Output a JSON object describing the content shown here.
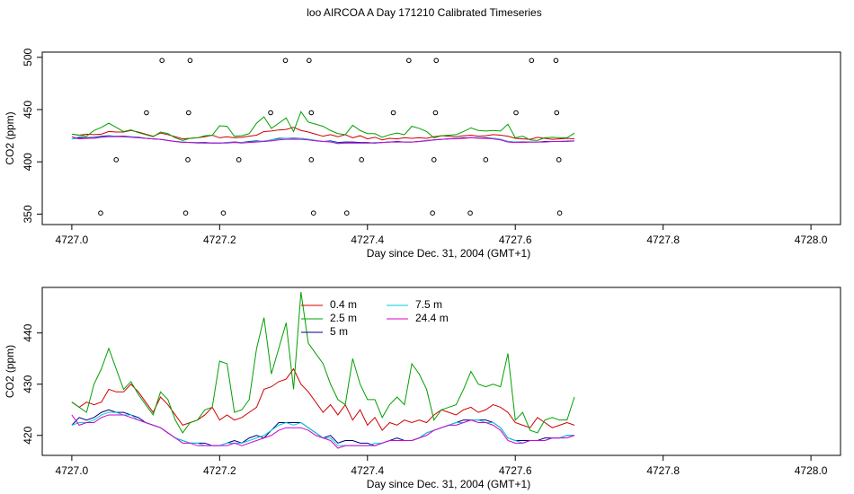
{
  "title": "loo AIRCOA A  Day 171210  Calibrated Timeseries",
  "chart_data": [
    {
      "type": "line",
      "xlabel": "Day since Dec. 31, 2004 (GMT+1)",
      "ylabel": "CO2 (ppm)",
      "xlim": [
        4726.96,
        4728.04
      ],
      "ylim": [
        340,
        505
      ],
      "xticks": [
        {
          "value": 4727,
          "label": "4727.0"
        },
        4727.2,
        4727.4,
        4727.6,
        4727.8,
        {
          "value": 4728,
          "label": "4728.0"
        }
      ],
      "yticks": [
        350,
        400,
        450,
        500
      ],
      "x": [
        4727,
        4727.01,
        4727.02,
        4727.03,
        4727.04,
        4727.05,
        4727.06,
        4727.07,
        4727.08,
        4727.09,
        4727.1,
        4727.11,
        4727.12,
        4727.13,
        4727.14,
        4727.15,
        4727.16,
        4727.17,
        4727.18,
        4727.19,
        4727.2,
        4727.21,
        4727.22,
        4727.23,
        4727.24,
        4727.25,
        4727.26,
        4727.27,
        4727.28,
        4727.29,
        4727.3,
        4727.31,
        4727.32,
        4727.33,
        4727.34,
        4727.35,
        4727.36,
        4727.37,
        4727.38,
        4727.39,
        4727.4,
        4727.41,
        4727.42,
        4727.43,
        4727.44,
        4727.45,
        4727.46,
        4727.47,
        4727.48,
        4727.49,
        4727.5,
        4727.51,
        4727.52,
        4727.53,
        4727.54,
        4727.55,
        4727.56,
        4727.57,
        4727.58,
        4727.59,
        4727.6,
        4727.61,
        4727.62,
        4727.63,
        4727.64,
        4727.65,
        4727.66,
        4727.67,
        4727.68
      ],
      "series": [
        {
          "color": "#d00000",
          "values": [
            426.5,
            425.5,
            426.5,
            426,
            426.5,
            429,
            428.5,
            428.5,
            430,
            428.5,
            426.5,
            424.5,
            427.5,
            426,
            424,
            422,
            422.5,
            423,
            424,
            425.5,
            423,
            424,
            423,
            423.5,
            424.5,
            425.5,
            429,
            429.5,
            430.5,
            431,
            433,
            430,
            428.5,
            426.5,
            424.5,
            426,
            424,
            426,
            423,
            425,
            422,
            423.5,
            421,
            422.5,
            422,
            423,
            422.5,
            423,
            422.5,
            424,
            425,
            424.5,
            424,
            425,
            425.5,
            424.5,
            425,
            426,
            425.5,
            424.5,
            422.5,
            422,
            421.5,
            423.5,
            422.5,
            421.5,
            422,
            422.5,
            422
          ]
        },
        {
          "color": "#00a000",
          "values": [
            426.5,
            425.5,
            424.5,
            430,
            433,
            437,
            433,
            429,
            430.5,
            428,
            426,
            424,
            428.5,
            427,
            423,
            420.5,
            422.5,
            423,
            425,
            425.5,
            434.5,
            434,
            424.5,
            425,
            427,
            437,
            443,
            432,
            437,
            442,
            429,
            448,
            438,
            436,
            434,
            430,
            427,
            426,
            435,
            430,
            427,
            427,
            423.5,
            426,
            427.5,
            426,
            434,
            432,
            429,
            423,
            425,
            425.5,
            426,
            429,
            432.5,
            430,
            429.5,
            430,
            429.5,
            436,
            423,
            424.5,
            421,
            420.5,
            423,
            423.5,
            423,
            423,
            427.5
          ]
        },
        {
          "color": "#000080",
          "values": [
            422,
            423.5,
            423,
            423.5,
            424.5,
            425,
            424.5,
            424.5,
            424,
            423.5,
            422.5,
            422,
            421.5,
            420.5,
            419.5,
            419,
            418.5,
            418.5,
            418.5,
            418,
            418,
            418.5,
            419,
            418.5,
            419.5,
            420,
            419.5,
            421,
            422.5,
            422.5,
            422.5,
            422.5,
            421.5,
            420.5,
            419.5,
            420,
            418.5,
            419,
            419,
            418.5,
            418.5,
            418,
            418.5,
            419,
            419.5,
            419,
            419,
            419.5,
            420.5,
            421,
            421.5,
            422,
            422.5,
            423,
            423,
            423,
            423,
            422.5,
            421.5,
            419.5,
            419,
            419,
            419,
            419,
            419.5,
            419.5,
            419.5,
            420,
            420
          ]
        },
        {
          "color": "#00d0d0",
          "values": [
            422,
            422.5,
            422.5,
            423,
            424,
            424.5,
            424.5,
            424,
            424,
            423,
            422.5,
            422,
            421.5,
            420.5,
            419.5,
            419,
            418.5,
            418.5,
            418,
            418,
            418,
            418.5,
            418.5,
            418.5,
            419,
            419.5,
            420,
            421,
            422,
            422.5,
            422,
            422.5,
            421.5,
            420.5,
            419.5,
            419.5,
            418,
            418,
            418,
            418,
            418,
            418.5,
            418.5,
            419,
            419,
            419,
            419,
            419.5,
            420.5,
            421,
            421.5,
            422,
            422.5,
            422.5,
            423,
            423,
            422.5,
            422.5,
            421.5,
            419.5,
            419,
            418.5,
            419,
            419,
            419,
            419.5,
            419.5,
            420,
            420
          ]
        },
        {
          "color": "#d000d0",
          "values": [
            424,
            422,
            422.5,
            422.5,
            423.5,
            424,
            424,
            424,
            423.5,
            423,
            422.5,
            422,
            421.5,
            420.5,
            419.5,
            418.5,
            418.5,
            418,
            418,
            418,
            418,
            418,
            418.5,
            418,
            418.5,
            419,
            419.5,
            420,
            421,
            421.5,
            421.5,
            421.5,
            421,
            420,
            419.5,
            419,
            417.5,
            418,
            418,
            418,
            418,
            418,
            418.5,
            419,
            419,
            419,
            419,
            419.5,
            420,
            421,
            421.5,
            422,
            422,
            422.5,
            423,
            422.5,
            422.5,
            422,
            421,
            419,
            418.5,
            418.5,
            419,
            419,
            419,
            419.5,
            419.5,
            419.5,
            420
          ]
        }
      ],
      "points": {
        "x": [
          4727.122,
          4727.16,
          4727.289,
          4727.321,
          4727.456,
          4727.493,
          4727.622,
          4727.655,
          4727.101,
          4727.158,
          4727.269,
          4727.324,
          4727.435,
          4727.492,
          4727.601,
          4727.656,
          4727.06,
          4727.157,
          4727.226,
          4727.324,
          4727.392,
          4727.49,
          4727.56,
          4727.659,
          4727.039,
          4727.154,
          4727.205,
          4727.327,
          4727.372,
          4727.488,
          4727.539,
          4727.66
        ],
        "values": [
          497,
          497,
          497,
          497,
          497,
          497,
          497,
          497,
          447,
          447,
          447,
          447,
          447,
          447,
          447,
          447,
          402,
          402,
          402,
          402,
          402,
          402,
          402,
          402,
          351,
          351,
          351,
          351,
          351,
          351,
          351,
          351
        ]
      }
    },
    {
      "type": "line",
      "xlabel": "Day since Dec. 31, 2004 (GMT+1)",
      "ylabel": "CO2 (ppm)",
      "xlim": [
        4726.96,
        4728.04
      ],
      "ylim": [
        416.1,
        448.9
      ],
      "xticks": [
        {
          "value": 4727,
          "label": "4727.0"
        },
        4727.2,
        4727.4,
        4727.6,
        4727.8,
        {
          "value": 4728,
          "label": "4728.0"
        }
      ],
      "yticks": [
        420,
        430,
        440
      ],
      "legend": "top",
      "x": [
        4727,
        4727.01,
        4727.02,
        4727.03,
        4727.04,
        4727.05,
        4727.06,
        4727.07,
        4727.08,
        4727.09,
        4727.1,
        4727.11,
        4727.12,
        4727.13,
        4727.14,
        4727.15,
        4727.16,
        4727.17,
        4727.18,
        4727.19,
        4727.2,
        4727.21,
        4727.22,
        4727.23,
        4727.24,
        4727.25,
        4727.26,
        4727.27,
        4727.28,
        4727.29,
        4727.3,
        4727.31,
        4727.32,
        4727.33,
        4727.34,
        4727.35,
        4727.36,
        4727.37,
        4727.38,
        4727.39,
        4727.4,
        4727.41,
        4727.42,
        4727.43,
        4727.44,
        4727.45,
        4727.46,
        4727.47,
        4727.48,
        4727.49,
        4727.5,
        4727.51,
        4727.52,
        4727.53,
        4727.54,
        4727.55,
        4727.56,
        4727.57,
        4727.58,
        4727.59,
        4727.6,
        4727.61,
        4727.62,
        4727.63,
        4727.64,
        4727.65,
        4727.66,
        4727.67,
        4727.68
      ],
      "series": [
        {
          "name": "0.4 m",
          "color": "#d00000",
          "values": [
            426.5,
            425.5,
            426.5,
            426,
            426.5,
            429,
            428.5,
            428.5,
            430,
            428.5,
            426.5,
            424.5,
            427.5,
            426,
            424,
            422,
            422.5,
            423,
            424,
            425.5,
            423,
            424,
            423,
            423.5,
            424.5,
            425.5,
            429,
            429.5,
            430.5,
            431,
            433,
            430,
            428.5,
            426.5,
            424.5,
            426,
            424,
            426,
            423,
            425,
            422,
            423.5,
            421,
            422.5,
            422,
            423,
            422.5,
            423,
            422.5,
            424,
            425,
            424.5,
            424,
            425,
            425.5,
            424.5,
            425,
            426,
            425.5,
            424.5,
            422.5,
            422,
            421.5,
            423.5,
            422.5,
            421.5,
            422,
            422.5,
            422
          ]
        },
        {
          "name": "2.5 m",
          "color": "#00a000",
          "values": [
            426.5,
            425.5,
            424.5,
            430,
            433,
            437,
            433,
            429,
            430.5,
            428,
            426,
            424,
            428.5,
            427,
            423,
            420.5,
            422.5,
            423,
            425,
            425.5,
            434.5,
            434,
            424.5,
            425,
            427,
            437,
            443,
            432,
            437,
            442,
            429,
            448,
            438,
            436,
            434,
            430,
            427,
            426,
            435,
            430,
            427,
            427,
            423.5,
            426,
            427.5,
            426,
            434,
            432,
            429,
            423,
            425,
            425.5,
            426,
            429,
            432.5,
            430,
            429.5,
            430,
            429.5,
            436,
            423,
            424.5,
            421,
            420.5,
            423,
            423.5,
            423,
            423,
            427.5
          ]
        },
        {
          "name": "5 m",
          "color": "#000080",
          "values": [
            422,
            423.5,
            423,
            423.5,
            424.5,
            425,
            424.5,
            424.5,
            424,
            423.5,
            422.5,
            422,
            421.5,
            420.5,
            419.5,
            419,
            418.5,
            418.5,
            418.5,
            418,
            418,
            418.5,
            419,
            418.5,
            419.5,
            420,
            419.5,
            421,
            422.5,
            422.5,
            422.5,
            422.5,
            421.5,
            420.5,
            419.5,
            420,
            418.5,
            419,
            419,
            418.5,
            418.5,
            418,
            418.5,
            419,
            419.5,
            419,
            419,
            419.5,
            420.5,
            421,
            421.5,
            422,
            422.5,
            423,
            423,
            423,
            423,
            422.5,
            421.5,
            419.5,
            419,
            419,
            419,
            419,
            419.5,
            419.5,
            419.5,
            420,
            420
          ]
        },
        {
          "name": "7.5 m",
          "color": "#00d0d0",
          "values": [
            422,
            422.5,
            422.5,
            423,
            424,
            424.5,
            424.5,
            424,
            424,
            423,
            422.5,
            422,
            421.5,
            420.5,
            419.5,
            419,
            418.5,
            418.5,
            418,
            418,
            418,
            418.5,
            418.5,
            418.5,
            419,
            419.5,
            420,
            421,
            422,
            422.5,
            422,
            422.5,
            421.5,
            420.5,
            419.5,
            419.5,
            418,
            418,
            418,
            418,
            418,
            418.5,
            418.5,
            419,
            419,
            419,
            419,
            419.5,
            420.5,
            421,
            421.5,
            422,
            422.5,
            422.5,
            423,
            423,
            422.5,
            422.5,
            421.5,
            419.5,
            419,
            418.5,
            419,
            419,
            419,
            419.5,
            419.5,
            420,
            420
          ]
        },
        {
          "name": "24.4 m",
          "color": "#d000d0",
          "values": [
            424,
            422,
            422.5,
            422.5,
            423.5,
            424,
            424,
            424,
            423.5,
            423,
            422.5,
            422,
            421.5,
            420.5,
            419.5,
            418.5,
            418.5,
            418,
            418,
            418,
            418,
            418,
            418.5,
            418,
            418.5,
            419,
            419.5,
            420,
            421,
            421.5,
            421.5,
            421.5,
            421,
            420,
            419.5,
            419,
            417.5,
            418,
            418,
            418,
            418,
            418,
            418.5,
            419,
            419,
            419,
            419,
            419.5,
            420,
            421,
            421.5,
            422,
            422,
            422.5,
            423,
            422.5,
            422.5,
            422,
            421,
            419,
            418.5,
            418.5,
            419,
            419,
            419,
            419.5,
            419.5,
            419.5,
            420
          ]
        }
      ]
    }
  ]
}
